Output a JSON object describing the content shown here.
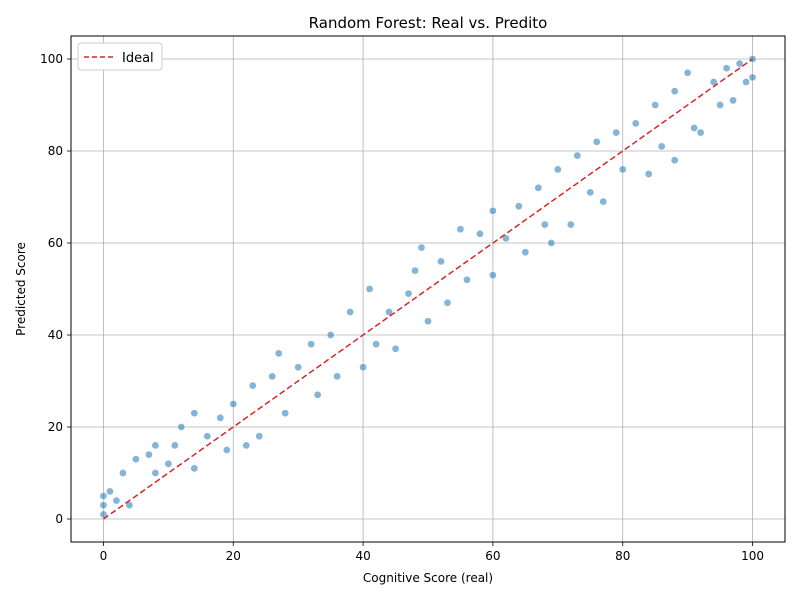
{
  "chart_data": {
    "type": "scatter",
    "title": "Random Forest: Real vs. Predito",
    "xlabel": "Cognitive Score (real)",
    "ylabel": "Predicted Score",
    "xlim": [
      -5,
      105
    ],
    "ylim": [
      -5,
      105
    ],
    "xticks": [
      0,
      20,
      40,
      60,
      80,
      100
    ],
    "yticks": [
      0,
      20,
      40,
      60,
      80,
      100
    ],
    "grid": true,
    "legend": {
      "placement": "top-left",
      "entries": [
        "Ideal"
      ]
    },
    "series": [
      {
        "kind": "scatter",
        "color": "#1f77b4",
        "description_points": "dense cloud along y = x with spread of about +/-8",
        "points": [
          [
            0,
            1
          ],
          [
            0,
            3
          ],
          [
            0,
            5
          ],
          [
            1,
            6
          ],
          [
            2,
            4
          ],
          [
            3,
            10
          ],
          [
            4,
            3
          ],
          [
            5,
            13
          ],
          [
            7,
            14
          ],
          [
            8,
            16
          ],
          [
            8,
            10
          ],
          [
            10,
            12
          ],
          [
            11,
            16
          ],
          [
            12,
            20
          ],
          [
            14,
            23
          ],
          [
            14,
            11
          ],
          [
            16,
            18
          ],
          [
            18,
            22
          ],
          [
            19,
            15
          ],
          [
            20,
            25
          ],
          [
            22,
            16
          ],
          [
            23,
            29
          ],
          [
            24,
            18
          ],
          [
            26,
            31
          ],
          [
            27,
            36
          ],
          [
            28,
            23
          ],
          [
            30,
            33
          ],
          [
            32,
            38
          ],
          [
            33,
            27
          ],
          [
            35,
            40
          ],
          [
            36,
            31
          ],
          [
            38,
            45
          ],
          [
            40,
            33
          ],
          [
            41,
            50
          ],
          [
            42,
            38
          ],
          [
            44,
            45
          ],
          [
            45,
            37
          ],
          [
            47,
            49
          ],
          [
            48,
            54
          ],
          [
            49,
            59
          ],
          [
            50,
            43
          ],
          [
            52,
            56
          ],
          [
            53,
            47
          ],
          [
            55,
            63
          ],
          [
            56,
            52
          ],
          [
            58,
            62
          ],
          [
            60,
            53
          ],
          [
            60,
            67
          ],
          [
            62,
            61
          ],
          [
            64,
            68
          ],
          [
            65,
            58
          ],
          [
            67,
            72
          ],
          [
            68,
            64
          ],
          [
            69,
            60
          ],
          [
            70,
            76
          ],
          [
            72,
            64
          ],
          [
            73,
            79
          ],
          [
            75,
            71
          ],
          [
            76,
            82
          ],
          [
            77,
            69
          ],
          [
            79,
            84
          ],
          [
            80,
            76
          ],
          [
            82,
            86
          ],
          [
            84,
            75
          ],
          [
            85,
            90
          ],
          [
            86,
            81
          ],
          [
            88,
            93
          ],
          [
            88,
            78
          ],
          [
            90,
            97
          ],
          [
            91,
            85
          ],
          [
            92,
            84
          ],
          [
            94,
            95
          ],
          [
            95,
            90
          ],
          [
            96,
            98
          ],
          [
            97,
            91
          ],
          [
            98,
            99
          ],
          [
            99,
            95
          ],
          [
            100,
            96
          ],
          [
            100,
            100
          ]
        ]
      },
      {
        "name": "Ideal",
        "kind": "line",
        "color": "#d62728",
        "x": [
          0,
          100
        ],
        "y": [
          0,
          100
        ]
      }
    ]
  }
}
